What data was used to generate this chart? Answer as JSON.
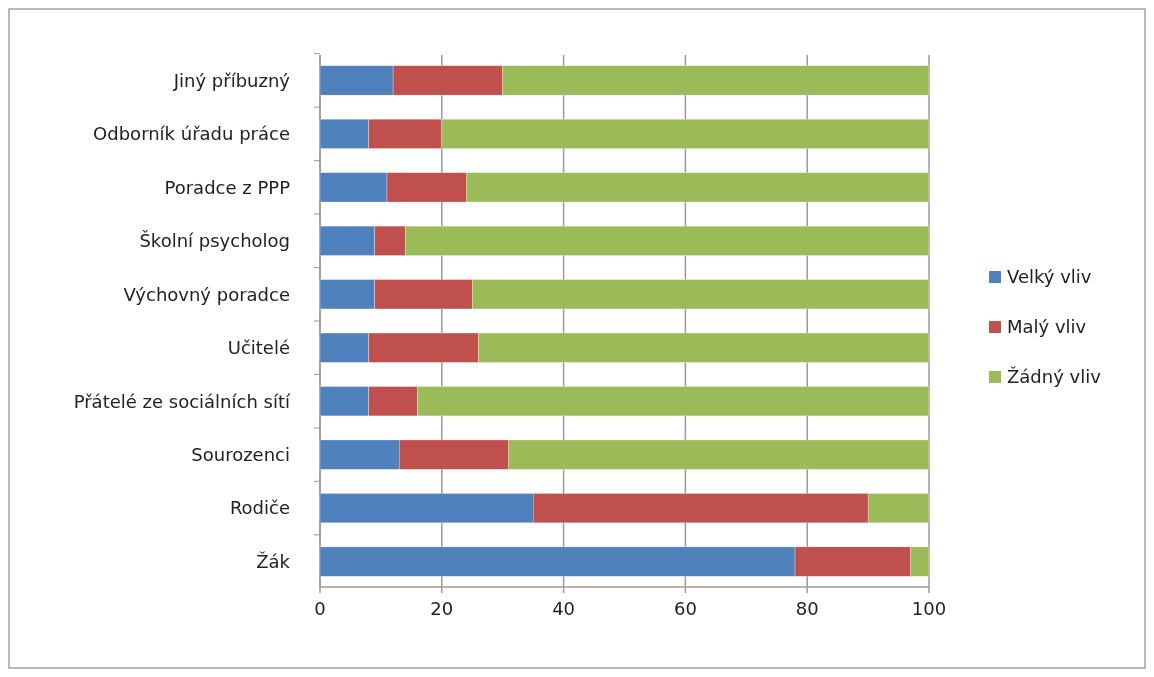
{
  "chart_data": {
    "type": "bar",
    "orientation": "horizontal",
    "stacked": true,
    "categories": [
      "Jiný příbuzný",
      "Odborník úřadu práce",
      "Poradce z PPP",
      "Školní psycholog",
      "Výchovný poradce",
      "Učitelé",
      "Přátelé ze sociálních sítí",
      "Sourozenci",
      "Rodiče",
      "Žák"
    ],
    "series": [
      {
        "name": "Velký vliv",
        "color": "#4f81bd",
        "values": [
          12,
          8,
          11,
          9,
          9,
          8,
          8,
          13,
          35,
          78
        ]
      },
      {
        "name": "Malý vliv",
        "color": "#c0504d",
        "values": [
          18,
          12,
          13,
          5,
          16,
          18,
          8,
          18,
          55,
          19
        ]
      },
      {
        "name": "Žádný vliv",
        "color": "#9bbb59",
        "values": [
          70,
          80,
          76,
          86,
          75,
          74,
          84,
          69,
          10,
          3
        ]
      }
    ],
    "xlim": [
      0,
      100
    ],
    "xticks": [
      0,
      20,
      40,
      60,
      80,
      100
    ],
    "grid": "x",
    "legend": "right"
  }
}
